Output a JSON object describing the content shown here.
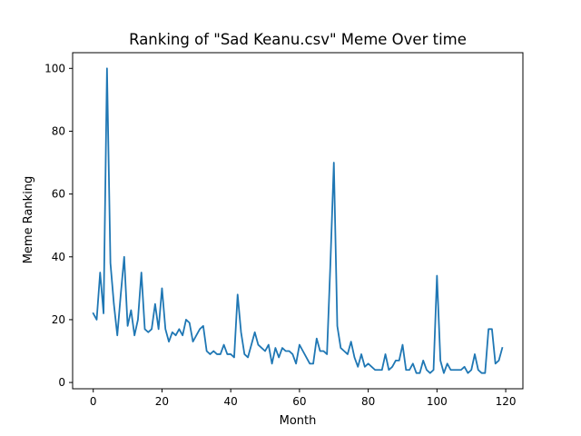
{
  "chart_data": {
    "type": "line",
    "title": "Ranking of \"Sad Keanu.csv\" Meme Over time",
    "xlabel": "Month",
    "ylabel": "Meme Ranking",
    "xlim": [
      -6,
      125
    ],
    "ylim": [
      -2,
      105
    ],
    "xticks": [
      0,
      20,
      40,
      60,
      80,
      100,
      120
    ],
    "yticks": [
      0,
      20,
      40,
      60,
      80,
      100
    ],
    "grid": false,
    "line_color": "#1f77b4",
    "series": [
      {
        "values": [
          22,
          20,
          35,
          22,
          100,
          38,
          25,
          15,
          28,
          40,
          18,
          23,
          15,
          20,
          35,
          17,
          16,
          17,
          25,
          17,
          30,
          17,
          13,
          16,
          15,
          17,
          15,
          20,
          19,
          13,
          15,
          17,
          18,
          10,
          9,
          10,
          9,
          9,
          12,
          9,
          9,
          8,
          28,
          16,
          9,
          8,
          12,
          16,
          12,
          11,
          10,
          12,
          6,
          11,
          8,
          11,
          10,
          10,
          9,
          6,
          12,
          10,
          8,
          6,
          6,
          14,
          10,
          10,
          9,
          38,
          70,
          18,
          11,
          10,
          9,
          13,
          8,
          5,
          9,
          5,
          6,
          5,
          4,
          4,
          4,
          9,
          4,
          5,
          7,
          7,
          12,
          4,
          4,
          6,
          3,
          3,
          7,
          4,
          3,
          4,
          34,
          7,
          3,
          6,
          4,
          4,
          4,
          4,
          5,
          3,
          4,
          9,
          4,
          3,
          3,
          17,
          17,
          6,
          7,
          11
        ]
      }
    ]
  }
}
